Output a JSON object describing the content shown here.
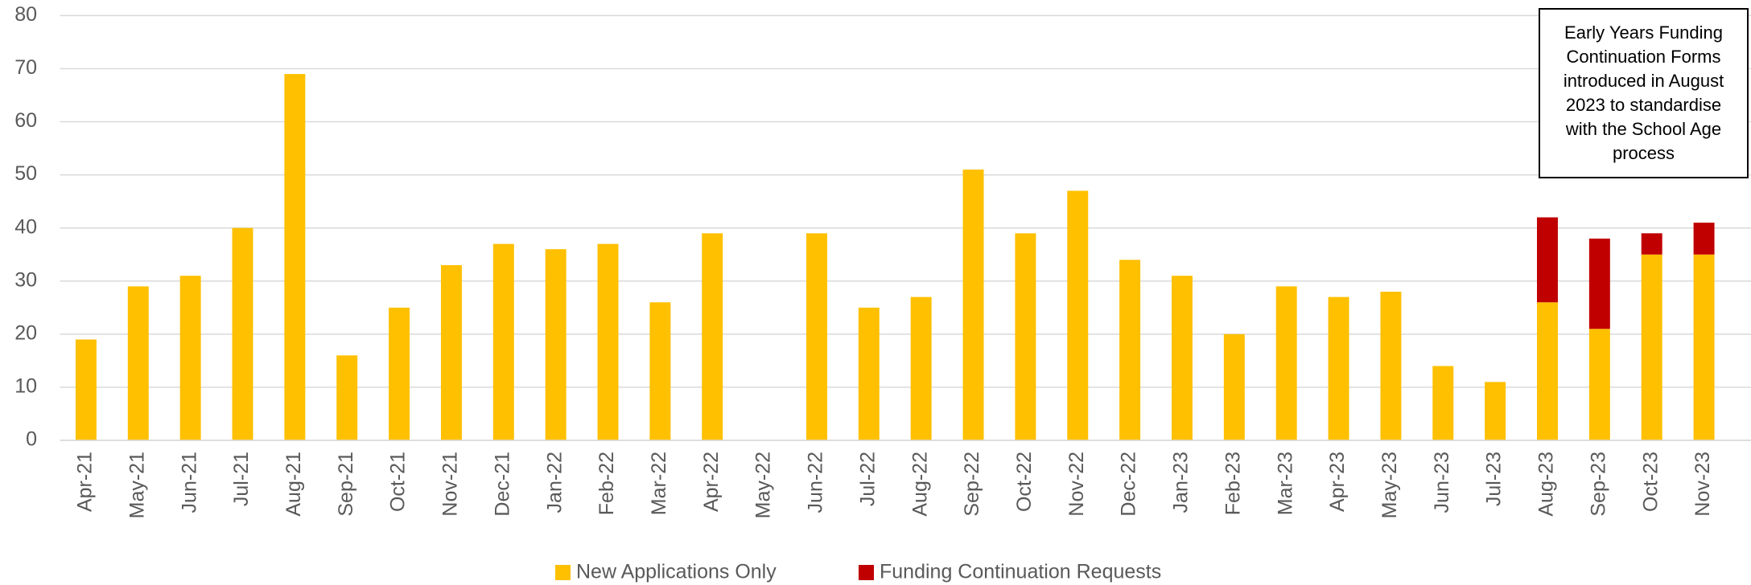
{
  "chart_data": {
    "type": "stacked_bar",
    "categories": [
      "Apr-21",
      "May-21",
      "Jun-21",
      "Jul-21",
      "Aug-21",
      "Sep-21",
      "Oct-21",
      "Nov-21",
      "Dec-21",
      "Jan-22",
      "Feb-22",
      "Mar-22",
      "Apr-22",
      "May-22",
      "Jun-22",
      "Jul-22",
      "Aug-22",
      "Sep-22",
      "Oct-22",
      "Nov-22",
      "Dec-22",
      "Jan-23",
      "Feb-23",
      "Mar-23",
      "Apr-23",
      "May-23",
      "Jun-23",
      "Jul-23",
      "Aug-23",
      "Sep-23",
      "Oct-23",
      "Nov-23"
    ],
    "series": [
      {
        "name": "New Applications Only",
        "color": "#ffc000",
        "values": [
          19,
          29,
          31,
          40,
          69,
          16,
          25,
          33,
          37,
          36,
          37,
          26,
          39,
          0,
          39,
          25,
          27,
          51,
          39,
          47,
          34,
          31,
          20,
          29,
          27,
          28,
          14,
          11,
          26,
          21,
          35,
          35
        ]
      },
      {
        "name": "Funding Continuation Requests",
        "color": "#c00000",
        "values": [
          null,
          null,
          null,
          null,
          null,
          null,
          null,
          null,
          null,
          null,
          null,
          null,
          null,
          null,
          null,
          null,
          null,
          null,
          null,
          null,
          null,
          null,
          null,
          null,
          null,
          null,
          null,
          null,
          16,
          17,
          4,
          6
        ]
      }
    ],
    "ylim": [
      0,
      80
    ],
    "yticks": [
      0,
      10,
      20,
      30,
      40,
      50,
      60,
      70,
      80
    ],
    "grid": true,
    "legend": "bottom",
    "annotation": "Early Years Funding Continuation Forms introduced in August 2023 to standardise with the School Age process"
  }
}
